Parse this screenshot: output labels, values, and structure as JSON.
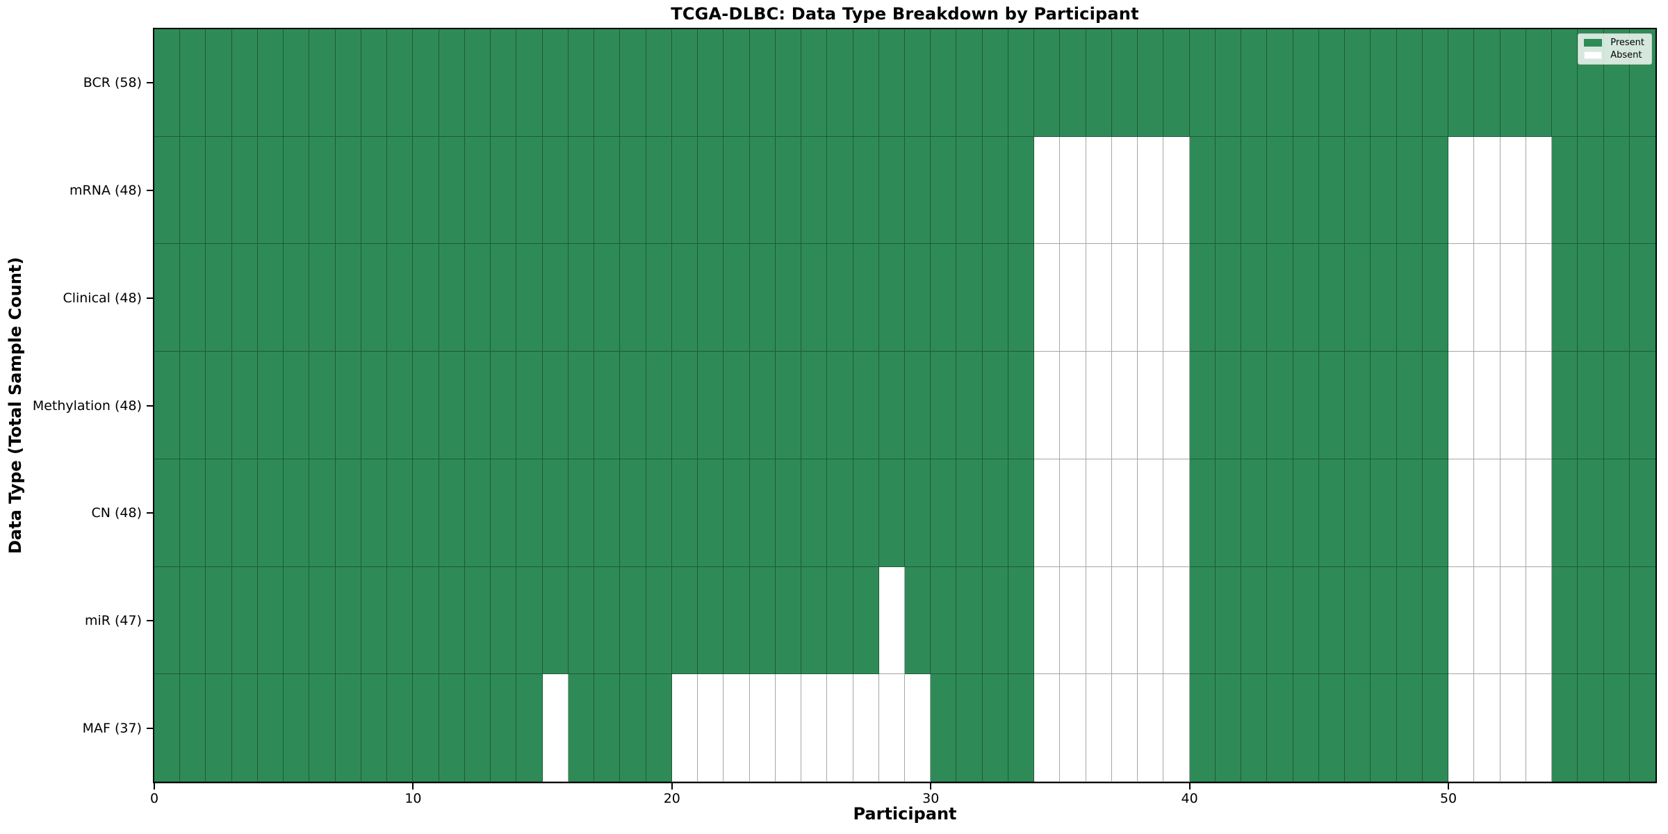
{
  "title": "TCGA-DLBC: Data Type Breakdown by Participant",
  "xlabel": "Participant",
  "ylabel": "Data Type (Total Sample Count)",
  "legend": {
    "position": "upper right",
    "present_label": "Present",
    "absent_label": "Absent"
  },
  "colors": {
    "present": "#2e8b57",
    "absent": "#ffffff",
    "cell_edge": "rgba(0,0,0,0.35)",
    "spine": "#000000"
  },
  "chart_data": {
    "type": "heatmap",
    "n_participants": 58,
    "x_range": [
      0,
      58
    ],
    "x_ticks": [
      0,
      10,
      20,
      30,
      40,
      50
    ],
    "grid": true,
    "legend_entries": [
      "Present",
      "Absent"
    ],
    "rows": [
      {
        "name": "BCR",
        "label": "BCR (58)",
        "total": 58,
        "absent_participants": []
      },
      {
        "name": "mRNA",
        "label": "mRNA (48)",
        "total": 48,
        "absent_participants": [
          34,
          35,
          36,
          37,
          38,
          39,
          50,
          51,
          52,
          53
        ]
      },
      {
        "name": "Clinical",
        "label": "Clinical (48)",
        "total": 48,
        "absent_participants": [
          34,
          35,
          36,
          37,
          38,
          39,
          50,
          51,
          52,
          53
        ]
      },
      {
        "name": "Methylation",
        "label": "Methylation (48)",
        "total": 48,
        "absent_participants": [
          34,
          35,
          36,
          37,
          38,
          39,
          50,
          51,
          52,
          53
        ]
      },
      {
        "name": "CN",
        "label": "CN (48)",
        "total": 48,
        "absent_participants": [
          34,
          35,
          36,
          37,
          38,
          39,
          50,
          51,
          52,
          53
        ]
      },
      {
        "name": "miR",
        "label": "miR (47)",
        "total": 47,
        "absent_participants": [
          28,
          34,
          35,
          36,
          37,
          38,
          39,
          50,
          51,
          52,
          53
        ]
      },
      {
        "name": "MAF",
        "label": "MAF (37)",
        "total": 37,
        "absent_participants": [
          15,
          20,
          21,
          22,
          23,
          24,
          25,
          26,
          27,
          28,
          29,
          34,
          35,
          36,
          37,
          38,
          39,
          50,
          51,
          52,
          53
        ]
      }
    ]
  }
}
